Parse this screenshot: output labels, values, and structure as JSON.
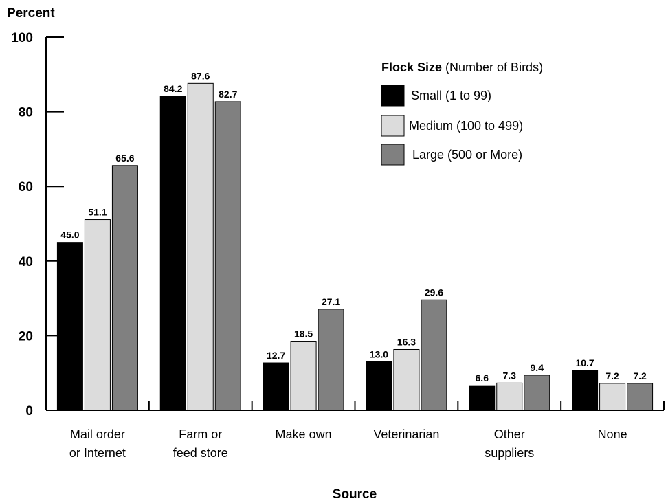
{
  "chart_data": {
    "type": "bar",
    "ylabel": "Percent",
    "xlabel": "Source",
    "ylim": [
      0,
      100
    ],
    "yticks": [
      "0",
      "20",
      "40",
      "60",
      "80",
      "100"
    ],
    "categories": [
      [
        "Mail order",
        "or Internet"
      ],
      [
        "Farm or",
        "feed store"
      ],
      [
        "Make own"
      ],
      [
        "Veterinarian"
      ],
      [
        "Other",
        "suppliers"
      ],
      [
        "None"
      ]
    ],
    "legend": {
      "title_bold": "Flock Size",
      "title_rest": " (Number of Birds)",
      "position": "top-right"
    },
    "series": [
      {
        "name": "Small (1 to 99)",
        "color": "#000000",
        "values": [
          45.0,
          84.2,
          12.7,
          13.0,
          6.6,
          10.7
        ],
        "labels": [
          "45.0",
          "84.2",
          "12.7",
          "13.0",
          "6.6",
          "10.7"
        ]
      },
      {
        "name": "Medium (100 to 499)",
        "color": "#dcdcdc",
        "values": [
          51.1,
          87.6,
          18.5,
          16.3,
          7.3,
          7.2
        ],
        "labels": [
          "51.1",
          "87.6",
          "18.5",
          "16.3",
          "7.3",
          "7.2"
        ]
      },
      {
        "name": "Large (500 or More)",
        "color": "#808080",
        "values": [
          65.6,
          82.7,
          27.1,
          29.6,
          9.4,
          7.2
        ],
        "labels": [
          "65.6",
          "82.7",
          "27.1",
          "29.6",
          "9.4",
          "7.2"
        ]
      }
    ]
  }
}
